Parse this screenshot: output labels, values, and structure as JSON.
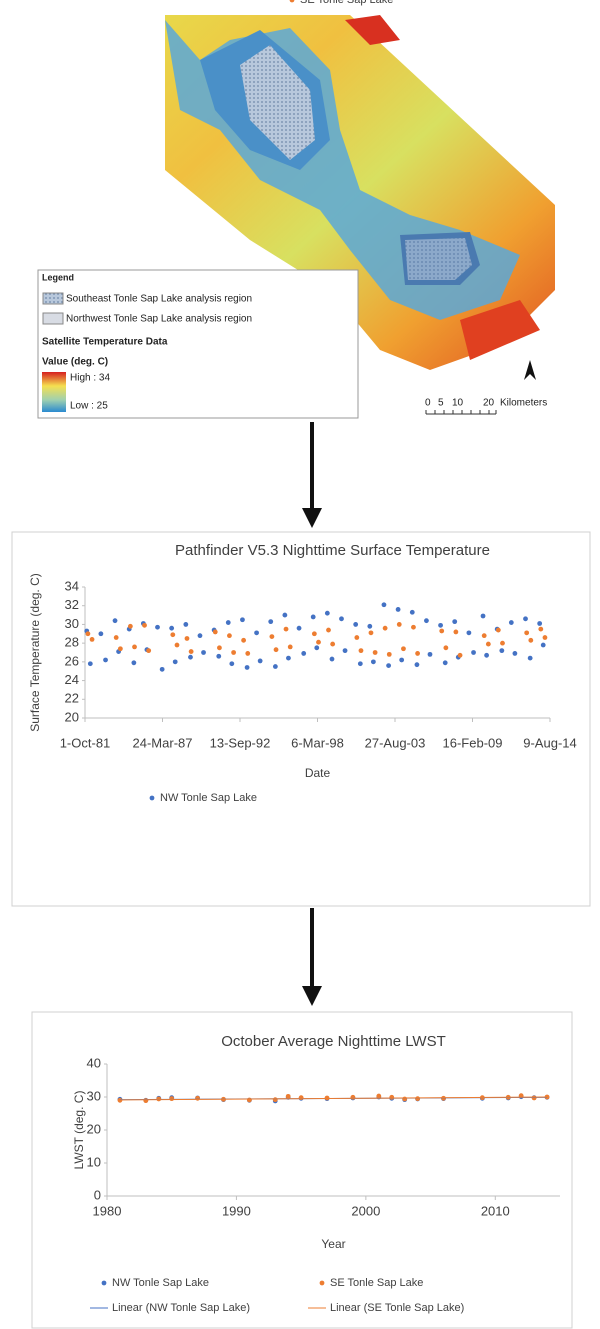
{
  "map": {
    "legend_title": "Legend",
    "regions": [
      "Southeast Tonle Sap Lake analysis region",
      "Northwest Tonle Sap Lake analysis region"
    ],
    "data_title": "Satellite Temperature Data",
    "value_title": "Value (deg. C)",
    "high_label": "High : 34",
    "low_label": "Low : 25",
    "scale_labels": [
      "0",
      "5",
      "10",
      "20",
      "Kilometers"
    ]
  },
  "chart_data": [
    {
      "type": "scatter",
      "title": "Pathfinder V5.3 Nighttime Surface Temperature",
      "x_label": "Date",
      "y_label": "Surface Temperature (deg. C)",
      "xlim": [
        "1981-10-01",
        "2014-08-09"
      ],
      "xticks": [
        {
          "value": "1981-10-01",
          "label": "1-Oct-81"
        },
        {
          "value": "1987-03-24",
          "label": "24-Mar-87"
        },
        {
          "value": "1992-09-13",
          "label": "13-Sep-92"
        },
        {
          "value": "1998-03-06",
          "label": "6-Mar-98"
        },
        {
          "value": "2003-08-27",
          "label": "27-Aug-03"
        },
        {
          "value": "2009-02-16",
          "label": "16-Feb-09"
        },
        {
          "value": "2014-08-09",
          "label": "9-Aug-14"
        }
      ],
      "ylim": [
        20,
        34
      ],
      "yticks": [
        20,
        22,
        24,
        26,
        28,
        30,
        32,
        34
      ],
      "series": [
        {
          "name": "NW Tonle Sap Lake",
          "color": "#4472c4",
          "x": [
            "1981-11-15",
            "1982-02-15",
            "1982-11-15",
            "1983-03-15",
            "1983-11-15",
            "1984-02-15",
            "1984-11-15",
            "1985-03-15",
            "1985-11-15",
            "1986-02-15",
            "1986-11-15",
            "1987-03-15",
            "1987-11-15",
            "1988-02-15",
            "1988-11-15",
            "1989-03-15",
            "1989-11-15",
            "1990-02-15",
            "1990-11-15",
            "1991-03-15",
            "1991-11-15",
            "1992-02-15",
            "1992-11-15",
            "1993-03-15",
            "1993-11-15",
            "1994-02-15",
            "1994-11-15",
            "1995-03-15",
            "1995-11-15",
            "1996-02-15",
            "1996-11-15",
            "1997-03-15",
            "1997-11-15",
            "1998-02-15",
            "1998-11-15",
            "1999-03-15",
            "1999-11-15",
            "2000-02-15",
            "2000-11-15",
            "2001-03-15",
            "2001-11-15",
            "2002-02-15",
            "2002-11-15",
            "2003-03-15",
            "2003-11-15",
            "2004-02-15",
            "2004-11-15",
            "2005-03-15",
            "2005-11-15",
            "2006-02-15",
            "2006-11-15",
            "2007-03-15",
            "2007-11-15",
            "2008-02-15",
            "2008-11-15",
            "2009-03-15",
            "2009-11-15",
            "2010-02-15",
            "2010-11-15",
            "2011-03-15",
            "2011-11-15",
            "2012-02-15",
            "2012-11-15",
            "2013-03-15",
            "2013-11-15",
            "2014-02-15"
          ],
          "values": [
            29.3,
            25.8,
            29.0,
            26.2,
            30.4,
            27.1,
            29.5,
            25.9,
            30.1,
            27.3,
            29.7,
            25.2,
            29.6,
            26.0,
            30.0,
            26.5,
            28.8,
            27.0,
            29.4,
            26.6,
            30.2,
            25.8,
            30.5,
            25.4,
            29.1,
            26.1,
            30.3,
            25.5,
            31.0,
            26.4,
            29.6,
            26.9,
            30.8,
            27.5,
            31.2,
            26.3,
            30.6,
            27.2,
            30.0,
            25.8,
            29.8,
            26.0,
            32.1,
            25.6,
            31.6,
            26.2,
            31.3,
            25.7,
            30.4,
            26.8,
            29.9,
            25.9,
            30.3,
            26.5,
            29.1,
            27.0,
            30.9,
            26.7,
            29.5,
            27.2,
            30.2,
            26.9,
            30.6,
            26.4,
            30.1,
            27.8
          ]
        },
        {
          "name": "SE Tonle Sap Lake",
          "color": "#ed7d31",
          "x": [
            "1981-12-15",
            "1982-04-01",
            "1983-12-15",
            "1984-04-01",
            "1984-12-15",
            "1985-04-01",
            "1985-12-15",
            "1986-04-01",
            "1987-12-15",
            "1988-04-01",
            "1988-12-15",
            "1989-04-01",
            "1990-12-15",
            "1991-04-01",
            "1991-12-15",
            "1992-04-01",
            "1992-12-15",
            "1993-04-01",
            "1994-12-15",
            "1995-04-01",
            "1995-12-15",
            "1996-04-01",
            "1997-12-15",
            "1998-04-01",
            "1998-12-15",
            "1999-04-01",
            "2000-12-15",
            "2001-04-01",
            "2001-12-15",
            "2002-04-01",
            "2002-12-15",
            "2003-04-01",
            "2003-12-15",
            "2004-04-01",
            "2004-12-15",
            "2005-04-01",
            "2006-12-15",
            "2007-04-01",
            "2007-12-15",
            "2008-04-01",
            "2009-12-15",
            "2010-04-01",
            "2010-12-15",
            "2011-04-01",
            "2012-12-15",
            "2013-04-01",
            "2013-12-15",
            "2014-04-01"
          ],
          "values": [
            29.0,
            28.4,
            28.6,
            27.4,
            29.8,
            27.6,
            29.9,
            27.2,
            28.9,
            27.8,
            28.5,
            27.1,
            29.2,
            27.5,
            28.8,
            27.0,
            28.3,
            26.9,
            28.7,
            27.3,
            29.5,
            27.6,
            29.0,
            28.1,
            29.4,
            27.9,
            28.6,
            27.2,
            29.1,
            27.0,
            29.6,
            26.8,
            30.0,
            27.4,
            29.7,
            26.9,
            29.3,
            27.5,
            29.2,
            26.7,
            28.8,
            27.9,
            29.4,
            28.0,
            29.1,
            28.3,
            29.5,
            28.6
          ]
        }
      ]
    },
    {
      "type": "scatter",
      "title": "October Average Nighttime LWST",
      "x_label": "Year",
      "y_label": "LWST (deg. C)",
      "xlim": [
        1980,
        2015
      ],
      "xticks": [
        1980,
        1990,
        2000,
        2010
      ],
      "ylim": [
        0,
        40
      ],
      "yticks": [
        0,
        10,
        20,
        30,
        40
      ],
      "series": [
        {
          "name": "NW Tonle Sap Lake",
          "color": "#4472c4",
          "x": [
            1981,
            1983,
            1984,
            1985,
            1987,
            1989,
            1991,
            1993,
            1994,
            1995,
            1997,
            1999,
            2001,
            2002,
            2003,
            2004,
            2006,
            2009,
            2011,
            2012,
            2013,
            2014
          ],
          "values": [
            29.3,
            29.0,
            29.6,
            29.8,
            29.7,
            29.2,
            29.0,
            28.8,
            29.9,
            29.6,
            29.5,
            29.7,
            30.0,
            29.6,
            29.2,
            29.4,
            29.5,
            29.6,
            29.7,
            30.1,
            29.8,
            29.9
          ]
        },
        {
          "name": "SE Tonle Sap Lake",
          "color": "#ed7d31",
          "x": [
            1981,
            1983,
            1984,
            1985,
            1987,
            1989,
            1991,
            1993,
            1994,
            1995,
            1997,
            1999,
            2001,
            2002,
            2003,
            2004,
            2006,
            2009,
            2011,
            2012,
            2013,
            2014
          ],
          "values": [
            29.0,
            28.9,
            29.4,
            29.5,
            29.6,
            29.3,
            29.1,
            29.2,
            30.2,
            29.8,
            29.7,
            29.9,
            30.3,
            29.9,
            29.4,
            29.5,
            29.6,
            29.8,
            29.9,
            30.4,
            29.7,
            30.0
          ]
        },
        {
          "name": "Linear (NW Tonle Sap Lake)",
          "color": "#4472c4",
          "style": "line",
          "x": [
            1981,
            2014
          ],
          "values": [
            29.2,
            29.9
          ]
        },
        {
          "name": "Linear (SE Tonle Sap Lake)",
          "color": "#ed7d31",
          "style": "line",
          "x": [
            1981,
            2014
          ],
          "values": [
            29.1,
            30.0
          ]
        }
      ]
    }
  ]
}
